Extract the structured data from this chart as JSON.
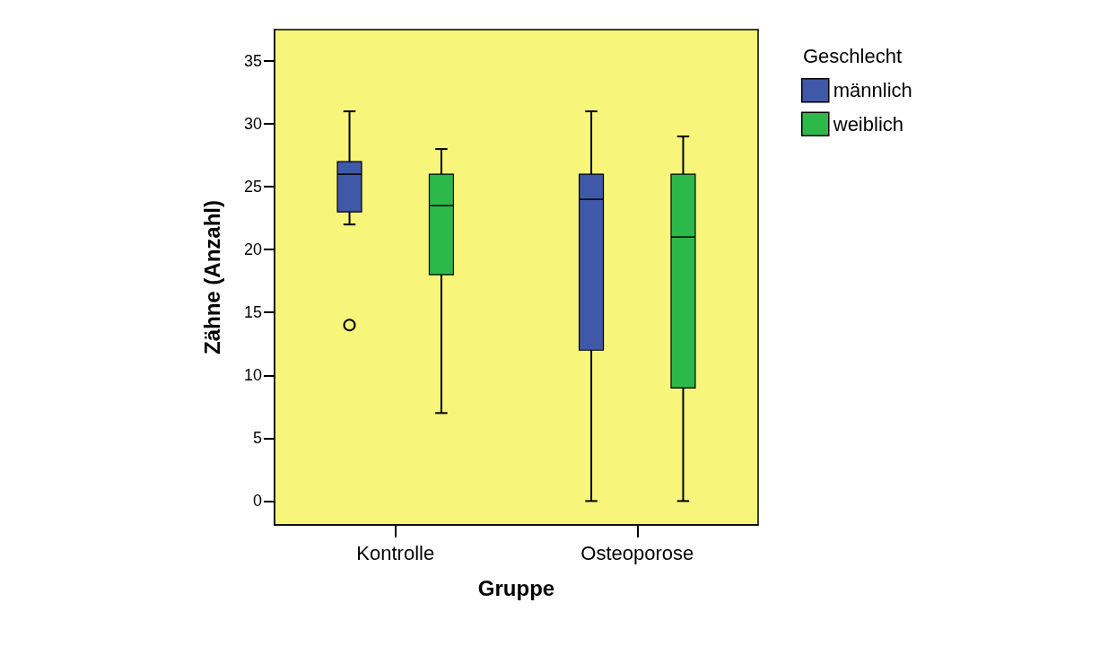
{
  "chart_data": {
    "type": "box",
    "xlabel": "Gruppe",
    "ylabel": "Zähne (Anzahl)",
    "legend_title": "Geschlecht",
    "legend": "top right",
    "grid": false,
    "marker": "circle",
    "categories": [
      "Kontrolle",
      "Osteoporose"
    ],
    "ylim": [
      -1.9,
      37.5
    ],
    "yticks": [
      0,
      5,
      10,
      15,
      20,
      25,
      30,
      35
    ],
    "series": [
      {
        "name": "männlich",
        "color": "#3f58a8",
        "boxes": [
          {
            "low": 22,
            "q1": 23,
            "median": 26,
            "q3": 27,
            "high": 31,
            "outliers": [
              14
            ]
          },
          {
            "low": 0,
            "q1": 12,
            "median": 24,
            "q3": 26,
            "high": 31
          }
        ]
      },
      {
        "name": "weiblich",
        "color": "#2db84a",
        "boxes": [
          {
            "low": 7,
            "q1": 18,
            "median": 23.5,
            "q3": 26,
            "high": 28
          },
          {
            "low": 0,
            "q1": 9,
            "median": 21,
            "q3": 26,
            "high": 29
          }
        ]
      }
    ]
  }
}
